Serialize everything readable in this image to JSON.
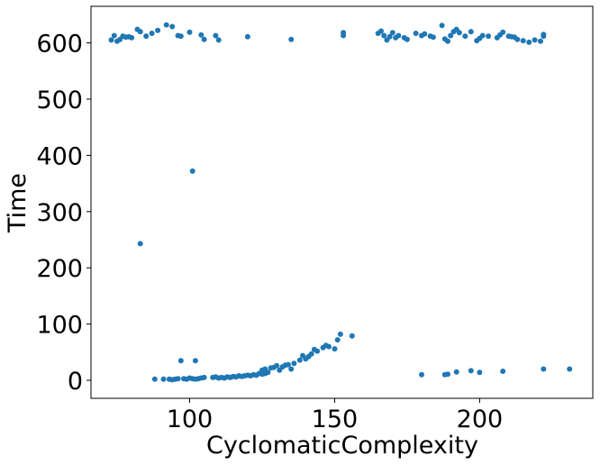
{
  "chart_data": {
    "type": "scatter",
    "title": "",
    "xlabel": "CyclomaticComplexity",
    "ylabel": "Time",
    "xlim": [
      66,
      239
    ],
    "ylim": [
      -32,
      665
    ],
    "xticks": [
      100,
      150,
      200
    ],
    "yticks": [
      0,
      100,
      200,
      300,
      400,
      500,
      600
    ],
    "xtick_labels": [
      "100",
      "150",
      "200"
    ],
    "ytick_labels": [
      "0",
      "100",
      "200",
      "300",
      "400",
      "500",
      "600"
    ],
    "grid": false,
    "legend": "none",
    "marker_color": "#1f77b4",
    "series": [
      {
        "points": [
          [
            73,
            605
          ],
          [
            74,
            613
          ],
          [
            75,
            603
          ],
          [
            76,
            606
          ],
          [
            77,
            612
          ],
          [
            78,
            610
          ],
          [
            79,
            611
          ],
          [
            80,
            609
          ],
          [
            82,
            624
          ],
          [
            83,
            620
          ],
          [
            85,
            612
          ],
          [
            87,
            617
          ],
          [
            89,
            622
          ],
          [
            92,
            632
          ],
          [
            94,
            629
          ],
          [
            96,
            613
          ],
          [
            97,
            612
          ],
          [
            100,
            619
          ],
          [
            104,
            614
          ],
          [
            105,
            606
          ],
          [
            109,
            613
          ],
          [
            110,
            605
          ],
          [
            120,
            611
          ],
          [
            135,
            606
          ],
          [
            153,
            613
          ],
          [
            153,
            618
          ],
          [
            165,
            617
          ],
          [
            166,
            621
          ],
          [
            167,
            613
          ],
          [
            168,
            605
          ],
          [
            169,
            611
          ],
          [
            170,
            618
          ],
          [
            171,
            609
          ],
          [
            172,
            613
          ],
          [
            174,
            609
          ],
          [
            175,
            606
          ],
          [
            178,
            617
          ],
          [
            180,
            613
          ],
          [
            181,
            616
          ],
          [
            183,
            612
          ],
          [
            184,
            610
          ],
          [
            187,
            631
          ],
          [
            188,
            607
          ],
          [
            189,
            603
          ],
          [
            190,
            613
          ],
          [
            191,
            620
          ],
          [
            192,
            624
          ],
          [
            193,
            618
          ],
          [
            195,
            612
          ],
          [
            197,
            620
          ],
          [
            199,
            604
          ],
          [
            200,
            608
          ],
          [
            201,
            613
          ],
          [
            203,
            612
          ],
          [
            206,
            609
          ],
          [
            207,
            614
          ],
          [
            208,
            619
          ],
          [
            210,
            612
          ],
          [
            211,
            611
          ],
          [
            212,
            610
          ],
          [
            213,
            606
          ],
          [
            215,
            604
          ],
          [
            217,
            601
          ],
          [
            219,
            605
          ],
          [
            221,
            603
          ],
          [
            222,
            612
          ],
          [
            222,
            615
          ],
          [
            101,
            372
          ],
          [
            83,
            243
          ],
          [
            97,
            35
          ],
          [
            102,
            35
          ],
          [
            88,
            2
          ],
          [
            91,
            2
          ],
          [
            93,
            2
          ],
          [
            94,
            1
          ],
          [
            95,
            2
          ],
          [
            96,
            3
          ],
          [
            98,
            3
          ],
          [
            99,
            2
          ],
          [
            100,
            4
          ],
          [
            101,
            3
          ],
          [
            102,
            2
          ],
          [
            103,
            3
          ],
          [
            104,
            4
          ],
          [
            105,
            5
          ],
          [
            108,
            5
          ],
          [
            109,
            6
          ],
          [
            110,
            4
          ],
          [
            111,
            5
          ],
          [
            112,
            4
          ],
          [
            113,
            6
          ],
          [
            114,
            5
          ],
          [
            115,
            7
          ],
          [
            116,
            6
          ],
          [
            117,
            8
          ],
          [
            118,
            7
          ],
          [
            119,
            8
          ],
          [
            120,
            9
          ],
          [
            121,
            8
          ],
          [
            122,
            10
          ],
          [
            123,
            9
          ],
          [
            124,
            12
          ],
          [
            125,
            11
          ],
          [
            125,
            18
          ],
          [
            126,
            12
          ],
          [
            126,
            20
          ],
          [
            127,
            14
          ],
          [
            128,
            22
          ],
          [
            129,
            23
          ],
          [
            130,
            26
          ],
          [
            131,
            18
          ],
          [
            132,
            24
          ],
          [
            133,
            27
          ],
          [
            134,
            28
          ],
          [
            135,
            20
          ],
          [
            136,
            30
          ],
          [
            138,
            36
          ],
          [
            139,
            44
          ],
          [
            140,
            38
          ],
          [
            141,
            42
          ],
          [
            142,
            47
          ],
          [
            143,
            55
          ],
          [
            144,
            52
          ],
          [
            146,
            58
          ],
          [
            147,
            62
          ],
          [
            148,
            60
          ],
          [
            150,
            56
          ],
          [
            151,
            72
          ],
          [
            152,
            82
          ],
          [
            156,
            79
          ],
          [
            180,
            10
          ],
          [
            188,
            10
          ],
          [
            189,
            11
          ],
          [
            192,
            15
          ],
          [
            197,
            17
          ],
          [
            200,
            14
          ],
          [
            208,
            16
          ],
          [
            222,
            20
          ],
          [
            231,
            20
          ]
        ]
      }
    ]
  }
}
